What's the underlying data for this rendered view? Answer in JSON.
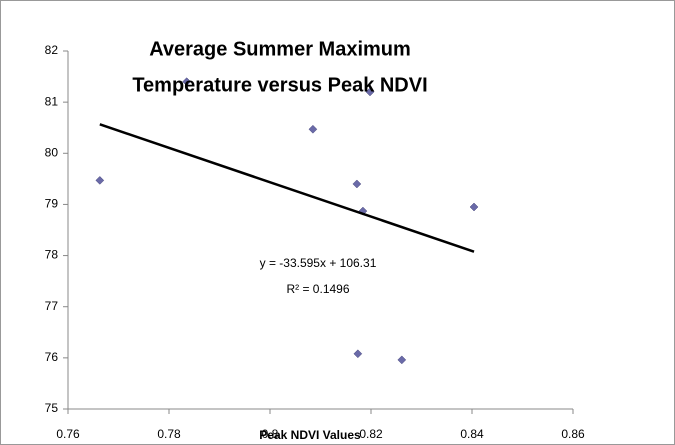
{
  "chart_data": {
    "type": "scatter",
    "title": [
      "Average Summer Maximum",
      "Temperature versus Peak NDVI"
    ],
    "x_label": "Peak NDVI Values",
    "x": [
      0.7663,
      0.7835,
      0.8085,
      0.8198,
      0.8172,
      0.8184,
      0.8404,
      0.8174,
      0.8261
    ],
    "values": [
      79.47,
      81.4,
      80.47,
      81.2,
      79.4,
      78.87,
      78.95,
      76.08,
      75.96
    ],
    "color": "#6a6aa8",
    "xlim": [
      0.76,
      0.86
    ],
    "xticks": [
      0.76,
      0.78,
      0.8,
      0.82,
      0.84,
      0.86
    ],
    "ylim": [
      75,
      82
    ],
    "yticks": [
      75,
      76,
      77,
      78,
      79,
      80,
      81,
      82
    ],
    "grid": false,
    "trendline": {
      "slope": -33.595,
      "intercept": 106.31,
      "equation_label": "y = -33.595x + 106.31",
      "r_squared_label": "R² = 0.1496"
    }
  }
}
